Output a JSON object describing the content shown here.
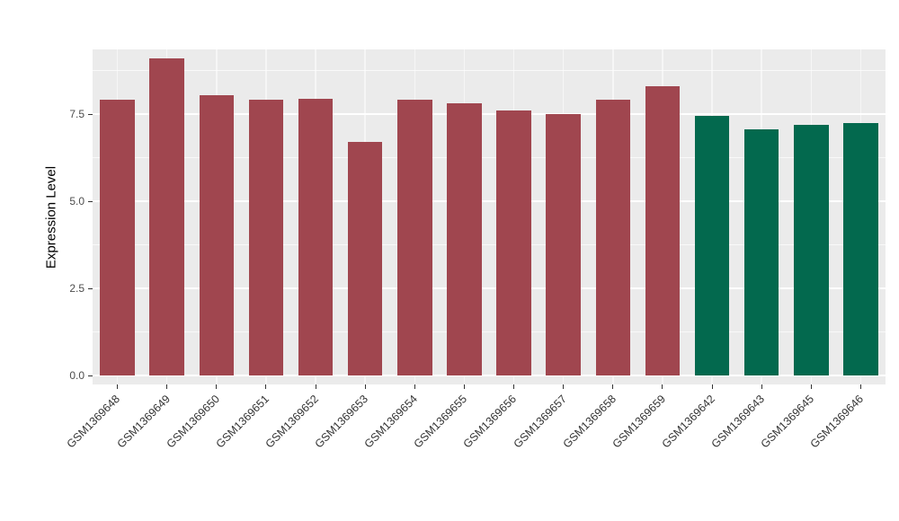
{
  "figure": {
    "background": "#FFFFFF",
    "panel_background": "#EBEBEB",
    "grid_color": "#FFFFFF",
    "tick_mark_color": "#333333",
    "tick_label_color": "#4D4D4D",
    "axis_title_color": "#000000"
  },
  "chart_data": {
    "type": "bar",
    "title": "",
    "xlabel": "",
    "ylabel": "Expression Level",
    "legend": "none",
    "grid": true,
    "ylim": [
      0,
      9.4
    ],
    "y_ticks": [
      0,
      2.5,
      5,
      7.5
    ],
    "y_tick_labels": [
      "0.0",
      "2.5",
      "5.0",
      "7.5"
    ],
    "y_minor_ticks": [
      1.25,
      3.75,
      6.25,
      8.75
    ],
    "categories": [
      "GSM1369648",
      "GSM1369649",
      "GSM1369650",
      "GSM1369651",
      "GSM1369652",
      "GSM1369653",
      "GSM1369654",
      "GSM1369655",
      "GSM1369656",
      "GSM1369657",
      "GSM1369658",
      "GSM1369659",
      "GSM1369642",
      "GSM1369643",
      "GSM1369645",
      "GSM1369646"
    ],
    "values": [
      7.9,
      9.1,
      8.05,
      7.9,
      7.95,
      6.7,
      7.9,
      7.8,
      7.6,
      7.5,
      7.9,
      8.3,
      7.45,
      7.05,
      7.2,
      7.25
    ],
    "bar_colors": [
      "#A0464F",
      "#A0464F",
      "#A0464F",
      "#A0464F",
      "#A0464F",
      "#A0464F",
      "#A0464F",
      "#A0464F",
      "#A0464F",
      "#A0464F",
      "#A0464F",
      "#A0464F",
      "#03694E",
      "#03694E",
      "#03694E",
      "#03694E"
    ],
    "group_colors": {
      "group_1": "#A0464F",
      "group_2": "#03694E"
    }
  }
}
